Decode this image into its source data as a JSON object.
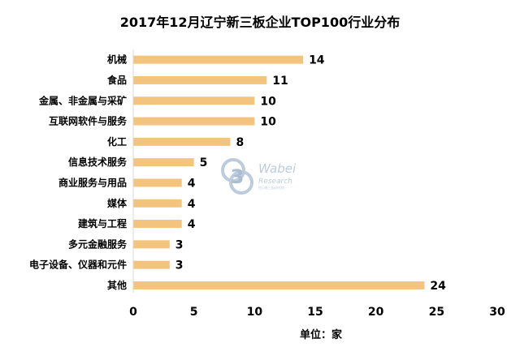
{
  "chart_data": {
    "type": "bar",
    "orientation": "horizontal",
    "title": "2017年12月辽宁新三板企业TOP100行业分布",
    "categories": [
      "机械",
      "食品",
      "金属、非金属与采矿",
      "互联网软件与服务",
      "化工",
      "信息技术服务",
      "商业服务与用品",
      "媒体",
      "建筑与工程",
      "多元金融服务",
      "电子设备、仪器和元件",
      "其他"
    ],
    "values": [
      14,
      11,
      10,
      10,
      8,
      5,
      4,
      4,
      4,
      3,
      3,
      24
    ],
    "xlabel": "单位：家",
    "ylabel": "",
    "xlim": [
      0,
      30
    ],
    "xticks": [
      "0",
      "5",
      "10",
      "15",
      "20",
      "25",
      "30"
    ],
    "grid": false,
    "legend": "none",
    "bar_color": "#F3C47D",
    "data_labels": true
  },
  "watermark": {
    "logo_digit": "3",
    "brand": "Wabei",
    "brand_sub": "Research",
    "tagline": "挖贝新三板研究院"
  }
}
